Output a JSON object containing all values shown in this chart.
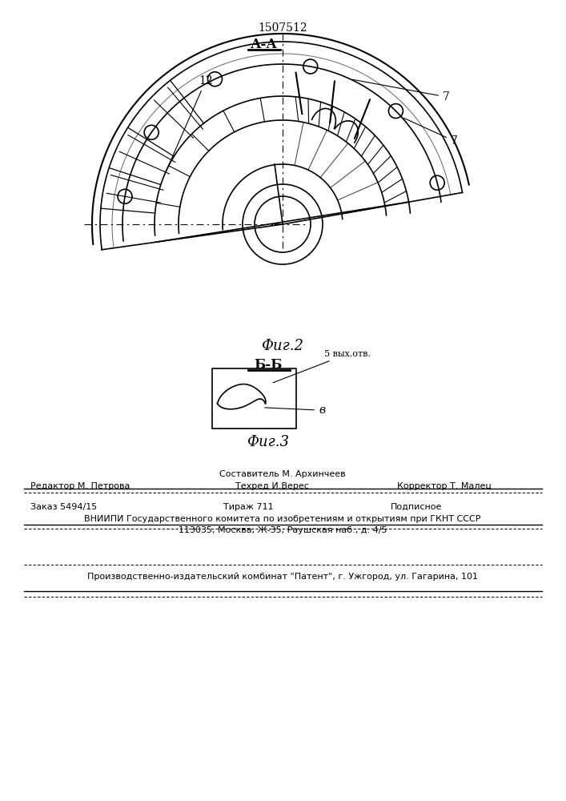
{
  "patent_number": "1507512",
  "fig2_label": "А-А",
  "fig2_caption": "Фиг.2",
  "fig3_label": "Б-Б",
  "fig3_caption": "Фиг.3",
  "fig3_annotation1": "5 вых.отв.",
  "fig3_annotation2": "в",
  "label_12": "12",
  "label_7a": "7",
  "label_7b": "7",
  "bg_color": "#ffffff",
  "line_color": "#000000",
  "line_width": 1.2,
  "footer_line1_col1": "Редактор М. Петрова",
  "footer_line1_col2": "Техред И.Верес",
  "footer_line1_col3": "Корректор Т. Малец",
  "footer_line1_col2_top": "Составитель М. Архинчеев",
  "footer_line2_col1": "Заказ 5494/15",
  "footer_line2_col2": "Тираж 711",
  "footer_line2_col3": "Подписное",
  "footer_line3": "ВНИИПИ Государственного комитета по изобретениям и открытиям при ГКНТ СССР",
  "footer_line4": "113035, Москва, Ж-35, Раушская наб., д. 4/5",
  "footer_line5": "Производственно-издательский комбинат \"Патент\", г. Ужгород, ул. Гагарина, 101"
}
